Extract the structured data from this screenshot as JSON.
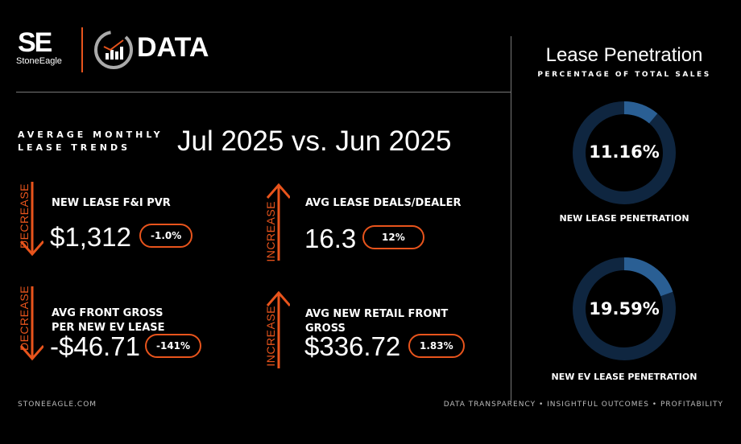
{
  "brand": {
    "logo_mark": "SE",
    "logo_name": "StoneEagle",
    "product": "DATA"
  },
  "header": {
    "subtitle_line1": "AVERAGE MONTHLY",
    "subtitle_line2": "LEASE TRENDS",
    "period": "Jul 2025 vs. Jun 2025"
  },
  "metrics": [
    {
      "direction": "DECREASE",
      "label": "NEW LEASE F&I PVR",
      "value": "$1,312",
      "change": "-1.0%"
    },
    {
      "direction": "INCREASE",
      "label": "AVG LEASE DEALS/DEALER",
      "value": "16.3",
      "change": "12%"
    },
    {
      "direction": "DECREASE",
      "label": "AVG FRONT GROSS PER NEW EV LEASE",
      "value": "-$46.71",
      "change": "-141%"
    },
    {
      "direction": "INCREASE",
      "label": "AVG NEW RETAIL FRONT GROSS",
      "value": "$336.72",
      "change": "1.83%"
    }
  ],
  "penetration": {
    "title": "Lease Penetration",
    "subtitle": "PERCENTAGE OF TOTAL SALES",
    "donuts": [
      {
        "label": "NEW LEASE PENETRATION",
        "value_text": "11.16%",
        "value": 11.16
      },
      {
        "label": "NEW EV LEASE PENETRATION",
        "value_text": "19.59%",
        "value": 19.59
      }
    ]
  },
  "colors": {
    "accent": "#e8541c",
    "ring": "#0f2640",
    "fill": "#2a5f94"
  },
  "footer": {
    "left": "STONEEAGLE.COM",
    "right": "DATA TRANSPARENCY • INSIGHTFUL OUTCOMES • PROFITABILITY"
  }
}
